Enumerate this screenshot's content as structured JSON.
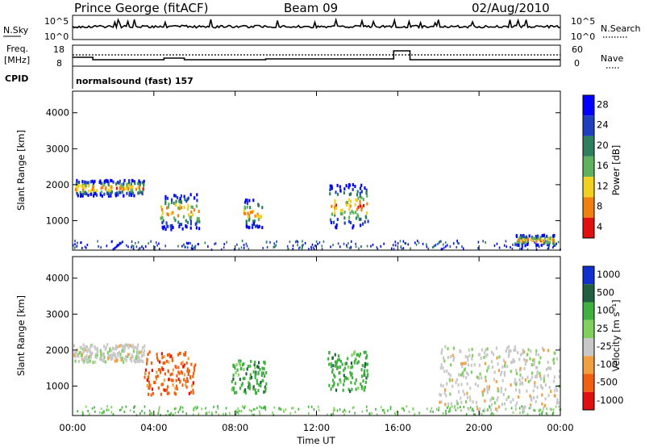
{
  "header": {
    "station": "Prince George (fitACF)",
    "beam": "Beam 09",
    "date": "02/Aug/2010"
  },
  "top_panel": {
    "nsky_label": "N.Sky",
    "nsearch_label": "N.Search",
    "left_ticks": [
      "10^5",
      "10^0"
    ],
    "right_ticks": [
      "10^5",
      "10^0"
    ],
    "freq_label": "Freq.",
    "freq_unit": "[MHz]",
    "freq_ticks": [
      "18",
      "8"
    ],
    "nave_label": "Nave",
    "nave_ticks": [
      "60",
      "0"
    ],
    "cpid_label": "CPID",
    "cpid_value": "normalsound (fast) 157"
  },
  "chart_data": [
    {
      "type": "heatmap",
      "title": "",
      "xlabel": "",
      "ylabel": "Slant Range [km]",
      "xlim": [
        0,
        24
      ],
      "ylim": [
        180,
        4600
      ],
      "y_ticks": [
        "1000",
        "2000",
        "3000",
        "4000"
      ],
      "colorbar": {
        "label": "Power [dB]",
        "ticks": [
          "4",
          "8",
          "12",
          "16",
          "20",
          "24",
          "28"
        ],
        "colors": [
          "#0000ff",
          "#1f3fbf",
          "#2f7f5f",
          "#5fb05f",
          "#f0d020",
          "#f08010",
          "#e01010"
        ]
      },
      "features": [
        {
          "t0": 0.1,
          "t1": 3.5,
          "r": 1900,
          "h": 220,
          "level": "high"
        },
        {
          "t0": 4.3,
          "t1": 6.2,
          "r": 1250,
          "h": 500,
          "level": "high"
        },
        {
          "t0": 8.4,
          "t1": 9.3,
          "r": 1200,
          "h": 400,
          "level": "high"
        },
        {
          "t0": 12.6,
          "t1": 14.5,
          "r": 1400,
          "h": 600,
          "level": "high"
        },
        {
          "t0": 21.8,
          "t1": 23.7,
          "r": 450,
          "h": 150,
          "level": "high"
        }
      ]
    },
    {
      "type": "heatmap",
      "title": "",
      "xlabel": "Time UT",
      "ylabel": "Slant Range [km]",
      "xlim": [
        0,
        24
      ],
      "ylim": [
        180,
        4600
      ],
      "x_ticks": [
        "00:00",
        "04:00",
        "08:00",
        "12:00",
        "16:00",
        "20:00",
        "00:00"
      ],
      "y_ticks": [
        "1000",
        "2000",
        "3000",
        "4000"
      ],
      "colorbar": {
        "label": "Velocity [m s⁻¹]",
        "ticks": [
          "1000",
          "500",
          "100",
          "25",
          "-25",
          "-100",
          "-500",
          "-1000"
        ],
        "colors": [
          "#1030d0",
          "#206040",
          "#40b040",
          "#80d060",
          "#c8c8c8",
          "#f0a040",
          "#f06010",
          "#e01010"
        ]
      },
      "features": [
        {
          "t0": 0.0,
          "t1": 3.5,
          "r": 1900,
          "h": 250,
          "level": "grey"
        },
        {
          "t0": 3.5,
          "t1": 6.0,
          "r": 1350,
          "h": 600,
          "level": "orange"
        },
        {
          "t0": 7.8,
          "t1": 9.5,
          "r": 1250,
          "h": 450,
          "level": "green"
        },
        {
          "t0": 12.5,
          "t1": 14.5,
          "r": 1400,
          "h": 550,
          "level": "green"
        },
        {
          "t0": 18.0,
          "t1": 24.0,
          "r": 1200,
          "h": 900,
          "level": "grey"
        }
      ]
    }
  ]
}
